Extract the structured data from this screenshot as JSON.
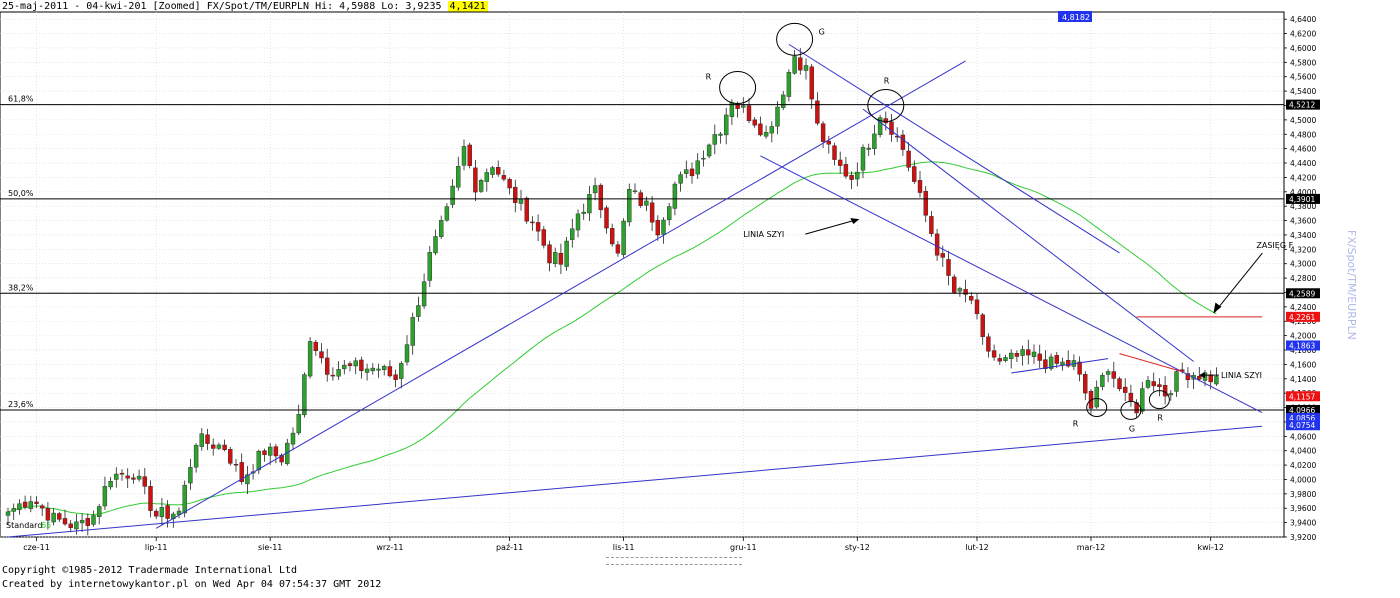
{
  "header": {
    "text": "25-maj-2011 - 04-kwi-201 [Zoomed] FX/Spot/TM/EURPLN Hi: 4,5988 Lo: 3,9235",
    "last": "4,1421"
  },
  "side_title": "FX/Spot/TM/EURPLN",
  "footer": {
    "line1": "Copyright ©1985-2012 Tradermade International Ltd",
    "line2": "Created by internetowykantor.pl   on Wed Apr 04 07:54:37 GMT 2012"
  },
  "colors": {
    "up": "#2da02d",
    "down": "#cc1111",
    "trend": "#3333cc",
    "ma": "#33cc33",
    "fib": "#000000",
    "resistance": "#dd2222",
    "badge_blue": "#2233ee",
    "badge_black": "#000000",
    "badge_red": "#ee1111"
  },
  "chart_data": {
    "type": "candlestick",
    "symbol": "FX/Spot/TM/EURPLN",
    "ylim": [
      3.92,
      4.65
    ],
    "y_ticks": [
      "3,9200",
      "3,9400",
      "3,9600",
      "3,9800",
      "4,0000",
      "4,0200",
      "4,0400",
      "4,0600",
      "4,0800",
      "4,1000",
      "4,1200",
      "4,1400",
      "4,1600",
      "4,1800",
      "4,2000",
      "4,2200",
      "4,2400",
      "4,2600",
      "4,2800",
      "4,3000",
      "4,3200",
      "4,3400",
      "4,3600",
      "4,3800",
      "4,4000",
      "4,4200",
      "4,4400",
      "4,4600",
      "4,4800",
      "4,5000",
      "4,5200",
      "4,5400",
      "4,5600",
      "4,5800",
      "4,6000",
      "4,6200",
      "4,6400"
    ],
    "x_labels": [
      {
        "i": 5,
        "label": "cze-11"
      },
      {
        "i": 26,
        "label": "lip-11"
      },
      {
        "i": 46,
        "label": "sie-11"
      },
      {
        "i": 67,
        "label": "wrz-11"
      },
      {
        "i": 88,
        "label": "paź-11"
      },
      {
        "i": 108,
        "label": "lis-11"
      },
      {
        "i": 129,
        "label": "gru-11"
      },
      {
        "i": 149,
        "label": "sty-12"
      },
      {
        "i": 170,
        "label": "lut-12"
      },
      {
        "i": 190,
        "label": "mar-12"
      },
      {
        "i": 211,
        "label": "kwi-12"
      }
    ],
    "anchors": [
      [
        0,
        3.955
      ],
      [
        4,
        3.975
      ],
      [
        8,
        3.945
      ],
      [
        12,
        3.935
      ],
      [
        15,
        3.95
      ],
      [
        18,
        4.005
      ],
      [
        22,
        4.01
      ],
      [
        26,
        3.95
      ],
      [
        30,
        3.955
      ],
      [
        33,
        4.055
      ],
      [
        38,
        4.045
      ],
      [
        41,
        4.0
      ],
      [
        45,
        4.04
      ],
      [
        48,
        4.03
      ],
      [
        51,
        4.085
      ],
      [
        53,
        4.2
      ],
      [
        56,
        4.155
      ],
      [
        60,
        4.155
      ],
      [
        65,
        4.155
      ],
      [
        68,
        4.14
      ],
      [
        71,
        4.22
      ],
      [
        74,
        4.31
      ],
      [
        77,
        4.37
      ],
      [
        80,
        4.46
      ],
      [
        82,
        4.41
      ],
      [
        85,
        4.44
      ],
      [
        88,
        4.4
      ],
      [
        92,
        4.36
      ],
      [
        95,
        4.31
      ],
      [
        97,
        4.3
      ],
      [
        100,
        4.37
      ],
      [
        103,
        4.4
      ],
      [
        105,
        4.36
      ],
      [
        107,
        4.31
      ],
      [
        109,
        4.4
      ],
      [
        112,
        4.38
      ],
      [
        114,
        4.35
      ],
      [
        117,
        4.41
      ],
      [
        120,
        4.43
      ],
      [
        123,
        4.47
      ],
      [
        125,
        4.49
      ],
      [
        127,
        4.53
      ],
      [
        128,
        4.52
      ],
      [
        131,
        4.5
      ],
      [
        133,
        4.48
      ],
      [
        135,
        4.52
      ],
      [
        138,
        4.59
      ],
      [
        140,
        4.57
      ],
      [
        142,
        4.49
      ],
      [
        145,
        4.44
      ],
      [
        148,
        4.42
      ],
      [
        151,
        4.47
      ],
      [
        153,
        4.51
      ],
      [
        155,
        4.49
      ],
      [
        157,
        4.46
      ],
      [
        160,
        4.39
      ],
      [
        163,
        4.32
      ],
      [
        166,
        4.26
      ],
      [
        169,
        4.25
      ],
      [
        171,
        4.19
      ],
      [
        174,
        4.16
      ],
      [
        177,
        4.17
      ],
      [
        180,
        4.17
      ],
      [
        183,
        4.16
      ],
      [
        187,
        4.16
      ],
      [
        190,
        4.1
      ],
      [
        193,
        4.16
      ],
      [
        196,
        4.11
      ],
      [
        198,
        4.1
      ],
      [
        200,
        4.145
      ],
      [
        203,
        4.12
      ],
      [
        206,
        4.15
      ],
      [
        210,
        4.145
      ],
      [
        212,
        4.138
      ]
    ],
    "trendlines": [
      {
        "from": [
          0,
          3.92
        ],
        "to": [
          220,
          4.074
        ]
      },
      {
        "from": [
          26,
          3.932
        ],
        "to": [
          168,
          4.582
        ]
      },
      {
        "from": [
          132,
          4.45
        ],
        "to": [
          220,
          4.093
        ]
      },
      {
        "from": [
          137,
          4.605
        ],
        "to": [
          195,
          4.315
        ]
      },
      {
        "from": [
          150,
          4.515
        ],
        "to": [
          208,
          4.164
        ]
      },
      {
        "from": [
          176,
          4.148
        ],
        "to": [
          193,
          4.168
        ]
      }
    ],
    "resistance_line": {
      "from": [
        198,
        4.2261
      ],
      "to": [
        220,
        4.2261
      ]
    },
    "fib_levels": [
      {
        "label": "61,8%",
        "value": 4.5212,
        "text": "4,5212"
      },
      {
        "label": "50,0%",
        "value": 4.3901,
        "text": "4,3901"
      },
      {
        "label": "38,2%",
        "value": 4.2589,
        "text": "4,2589"
      },
      {
        "label": "23,6%",
        "value": 4.0966,
        "text": "4,0966"
      }
    ],
    "badges": [
      {
        "value": 4.2261,
        "text": "4,2261",
        "color": "red"
      },
      {
        "value": 4.1863,
        "text": "4,1863",
        "color": "blue"
      },
      {
        "value": 4.1157,
        "text": "4,1157",
        "color": "red"
      },
      {
        "value": 4.0856,
        "text": "4,0856",
        "color": "blue"
      },
      {
        "value": 4.0754,
        "text": "4,0754",
        "color": "blue"
      }
    ],
    "top_badge": "4,8182",
    "pattern_circles": [
      {
        "i": 128,
        "v": 4.545,
        "label": "R",
        "labelPos": "left"
      },
      {
        "i": 138,
        "v": 4.612,
        "label": "G",
        "labelPos": "right"
      },
      {
        "i": 154,
        "v": 4.52,
        "label": "R",
        "labelPos": "top"
      },
      {
        "i": 191,
        "v": 4.1,
        "label": "R",
        "labelPos": "bottomleft"
      },
      {
        "i": 197,
        "v": 4.096,
        "label": "G",
        "labelPos": "bottom"
      },
      {
        "i": 202,
        "v": 4.111,
        "label": "R",
        "labelPos": "bottom"
      }
    ],
    "annotations": [
      {
        "text": "LINIA SZYI",
        "i": 129,
        "v": 4.337
      },
      {
        "text": "ZASIĘG F",
        "i": 212,
        "v": 4.326
      },
      {
        "text": "LINIA SZYI",
        "i": 210,
        "v": 4.145
      }
    ],
    "indicator_label": "Standard",
    "indicator_period": "65",
    "ma_period": 65
  }
}
